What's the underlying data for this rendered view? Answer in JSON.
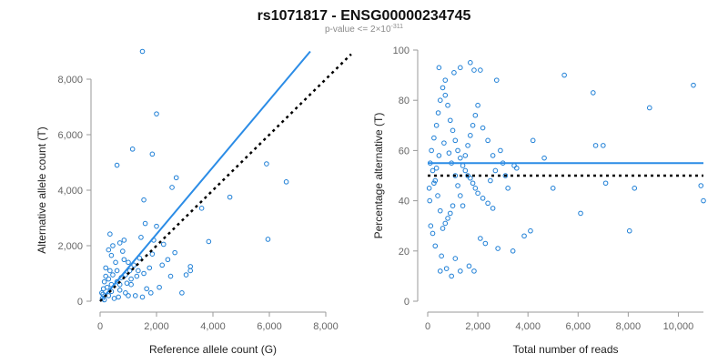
{
  "title": "rs1071817 - ENSG00000234745",
  "subtitle": {
    "main": "p-value <= 2×10",
    "exponent": "-311"
  },
  "colors": {
    "points": "#1e7fd6",
    "fit_line": "#2b8ce6",
    "reference_line": "#000000",
    "axis": "#9a9a9a",
    "text": "#222222"
  },
  "chart_data": [
    {
      "type": "scatter",
      "xlabel": "Reference allele count (G)",
      "ylabel": "Alternative allele count (T)",
      "xlim": [
        0,
        8000
      ],
      "ylim": [
        0,
        8000
      ],
      "xticks": [
        0,
        2000,
        4000,
        6000,
        8000
      ],
      "yticks": [
        0,
        2000,
        4000,
        6000,
        8000
      ],
      "xtick_labels": [
        "0",
        "2,000",
        "4,000",
        "6,000",
        "8,000"
      ],
      "ytick_labels": [
        "0",
        "2,000",
        "4,000",
        "6,000",
        "8,000"
      ],
      "grid": false,
      "points": [
        [
          1500,
          9000
        ],
        [
          2000,
          6750
        ],
        [
          1150,
          5480
        ],
        [
          1850,
          5300
        ],
        [
          600,
          4900
        ],
        [
          1550,
          3650
        ],
        [
          2700,
          4450
        ],
        [
          2550,
          4100
        ],
        [
          4600,
          3750
        ],
        [
          3600,
          3350
        ],
        [
          5900,
          4950
        ],
        [
          6600,
          4300
        ],
        [
          5950,
          2230
        ],
        [
          3850,
          2150
        ],
        [
          2000,
          2700
        ],
        [
          2250,
          2050
        ],
        [
          1600,
          2800
        ],
        [
          1450,
          2300
        ],
        [
          1900,
          2200
        ],
        [
          2650,
          1750
        ],
        [
          3200,
          1100
        ],
        [
          3050,
          950
        ],
        [
          2200,
          1300
        ],
        [
          2500,
          900
        ],
        [
          1850,
          1700
        ],
        [
          1750,
          1200
        ],
        [
          1400,
          1550
        ],
        [
          1200,
          1300
        ],
        [
          1300,
          900
        ],
        [
          1650,
          450
        ],
        [
          1550,
          1000
        ],
        [
          1050,
          1100
        ],
        [
          1100,
          800
        ],
        [
          950,
          650
        ],
        [
          800,
          1800
        ],
        [
          850,
          2200
        ],
        [
          700,
          2100
        ],
        [
          450,
          2000
        ],
        [
          350,
          2420
        ],
        [
          400,
          1650
        ],
        [
          300,
          1850
        ],
        [
          550,
          1400
        ],
        [
          450,
          950
        ],
        [
          600,
          700
        ],
        [
          700,
          400
        ],
        [
          900,
          300
        ],
        [
          200,
          1200
        ],
        [
          150,
          700
        ],
        [
          250,
          500
        ],
        [
          100,
          250
        ],
        [
          300,
          200
        ],
        [
          500,
          100
        ],
        [
          650,
          150
        ],
        [
          1000,
          200
        ],
        [
          1250,
          200
        ],
        [
          1500,
          150
        ],
        [
          1800,
          300
        ],
        [
          2100,
          500
        ],
        [
          2900,
          300
        ],
        [
          3200,
          1250
        ],
        [
          2400,
          1500
        ],
        [
          850,
          1500
        ],
        [
          1000,
          1400
        ],
        [
          600,
          1100
        ],
        [
          350,
          1100
        ],
        [
          200,
          900
        ],
        [
          120,
          450
        ],
        [
          80,
          100
        ],
        [
          60,
          300
        ],
        [
          150,
          50
        ],
        [
          400,
          350
        ],
        [
          750,
          850
        ],
        [
          900,
          950
        ],
        [
          1100,
          600
        ],
        [
          1350,
          1100
        ],
        [
          400,
          600
        ],
        [
          300,
          800
        ],
        [
          700,
          600
        ]
      ],
      "fit_line": {
        "x": [
          0,
          7450
        ],
        "y": [
          0,
          9000
        ]
      },
      "reference_line": {
        "x": [
          0,
          8900
        ],
        "y": [
          0,
          8900
        ]
      }
    },
    {
      "type": "scatter",
      "xlabel": "Total number of reads",
      "ylabel": "Percentage alternative (T)",
      "xlim": [
        0,
        11000
      ],
      "ylim": [
        0,
        100
      ],
      "xticks": [
        0,
        2000,
        4000,
        6000,
        8000,
        10000
      ],
      "yticks": [
        0,
        20,
        40,
        60,
        80,
        100
      ],
      "xtick_labels": [
        "0",
        "2,000",
        "4,000",
        "6,000",
        "8,000",
        "10,000"
      ],
      "ytick_labels": [
        "0",
        "20",
        "40",
        "60",
        "80",
        "100"
      ],
      "grid": false,
      "points": [
        [
          1700,
          95
        ],
        [
          1850,
          92
        ],
        [
          2100,
          92
        ],
        [
          2750,
          88
        ],
        [
          1300,
          93
        ],
        [
          450,
          93
        ],
        [
          1050,
          91
        ],
        [
          700,
          88
        ],
        [
          5450,
          90
        ],
        [
          8850,
          77
        ],
        [
          10600,
          86
        ],
        [
          6600,
          83
        ],
        [
          6700,
          62
        ],
        [
          7000,
          62
        ],
        [
          7100,
          47
        ],
        [
          8250,
          45
        ],
        [
          5000,
          45
        ],
        [
          4200,
          64
        ],
        [
          3450,
          54
        ],
        [
          3100,
          50
        ],
        [
          3000,
          55
        ],
        [
          3550,
          53
        ],
        [
          4650,
          57
        ],
        [
          10900,
          46
        ],
        [
          11000,
          40
        ],
        [
          6100,
          35
        ],
        [
          8050,
          28
        ],
        [
          4100,
          28
        ],
        [
          3850,
          26
        ],
        [
          2800,
          21
        ],
        [
          3400,
          20
        ],
        [
          2300,
          23
        ],
        [
          2100,
          25
        ],
        [
          1650,
          14
        ],
        [
          1300,
          12
        ],
        [
          1850,
          12
        ],
        [
          1100,
          17
        ],
        [
          950,
          10
        ],
        [
          750,
          13
        ],
        [
          500,
          12
        ],
        [
          550,
          18
        ],
        [
          300,
          22
        ],
        [
          200,
          27
        ],
        [
          120,
          30
        ],
        [
          80,
          40
        ],
        [
          60,
          45
        ],
        [
          100,
          55
        ],
        [
          150,
          60
        ],
        [
          250,
          65
        ],
        [
          350,
          70
        ],
        [
          420,
          75
        ],
        [
          500,
          80
        ],
        [
          600,
          85
        ],
        [
          700,
          82
        ],
        [
          800,
          78
        ],
        [
          900,
          72
        ],
        [
          1000,
          68
        ],
        [
          1100,
          64
        ],
        [
          1200,
          60
        ],
        [
          1300,
          57
        ],
        [
          1400,
          54
        ],
        [
          1500,
          52
        ],
        [
          1600,
          50
        ],
        [
          1700,
          49
        ],
        [
          1800,
          47
        ],
        [
          1900,
          45
        ],
        [
          2000,
          43
        ],
        [
          2200,
          41
        ],
        [
          2400,
          39
        ],
        [
          2600,
          37
        ],
        [
          1000,
          38
        ],
        [
          900,
          35
        ],
        [
          800,
          33
        ],
        [
          700,
          31
        ],
        [
          600,
          29
        ],
        [
          500,
          36
        ],
        [
          400,
          42
        ],
        [
          300,
          48
        ],
        [
          200,
          52
        ],
        [
          1500,
          58
        ],
        [
          1600,
          62
        ],
        [
          1700,
          66
        ],
        [
          1800,
          70
        ],
        [
          1900,
          74
        ],
        [
          2000,
          78
        ],
        [
          2200,
          69
        ],
        [
          2400,
          64
        ],
        [
          2600,
          58
        ],
        [
          1200,
          46
        ],
        [
          1300,
          42
        ],
        [
          1400,
          38
        ],
        [
          2500,
          48
        ],
        [
          2700,
          52
        ],
        [
          2900,
          60
        ],
        [
          3200,
          45
        ],
        [
          1100,
          50
        ],
        [
          950,
          55
        ],
        [
          850,
          59
        ],
        [
          650,
          63
        ],
        [
          450,
          58
        ],
        [
          350,
          53
        ],
        [
          250,
          47
        ]
      ],
      "fit_line": {
        "x": [
          0,
          11000
        ],
        "y": [
          55,
          55
        ]
      },
      "reference_line": {
        "x": [
          0,
          11000
        ],
        "y": [
          50,
          50
        ]
      }
    }
  ]
}
